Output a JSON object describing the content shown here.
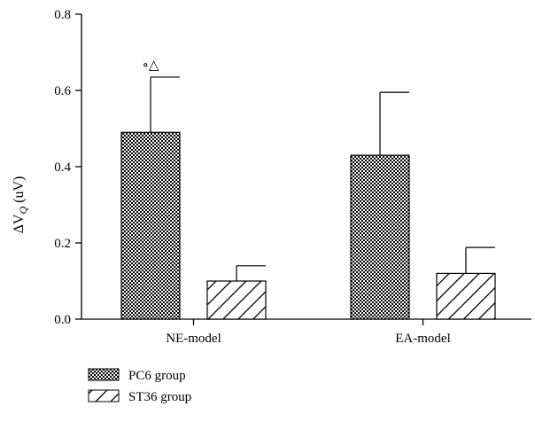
{
  "chart_data": {
    "type": "bar",
    "categories": [
      "NE-model",
      "EA-model"
    ],
    "series": [
      {
        "name": "PC6 group",
        "values": [
          0.49,
          0.43
        ],
        "errors": [
          0.145,
          0.165
        ],
        "pattern": "checker"
      },
      {
        "name": "ST36 group",
        "values": [
          0.1,
          0.12
        ],
        "errors": [
          0.04,
          0.068
        ],
        "pattern": "hatch"
      }
    ],
    "ylabel_prefix": "ΔV",
    "ylabel_sub": "Q",
    "ylabel_suffix": " (uV)",
    "ylim": [
      0,
      0.8
    ],
    "yticks": [
      "0.0",
      "0.2",
      "0.4",
      "0.6",
      "0.8"
    ],
    "annotations": [
      {
        "category": "NE-model",
        "series": "PC6 group",
        "text": "∘△"
      }
    ],
    "legend_position": "bottom-left",
    "grid": false
  }
}
